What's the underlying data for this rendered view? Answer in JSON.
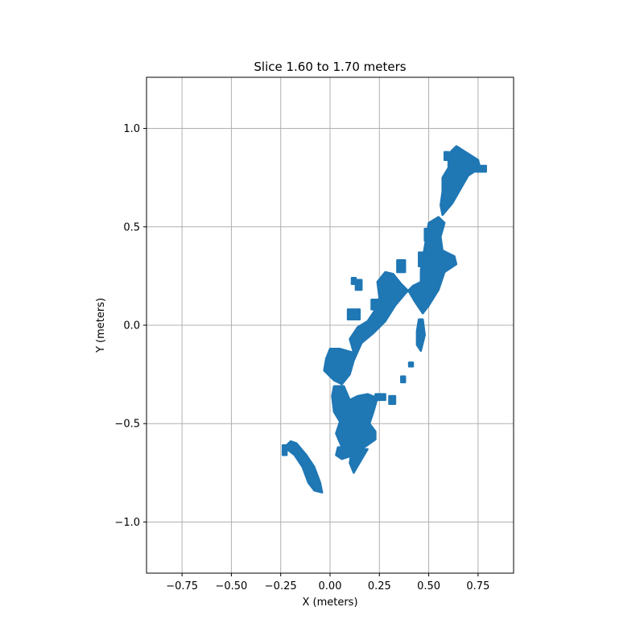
{
  "chart_data": {
    "type": "scatter",
    "title": "Slice 1.60 to 1.70 meters",
    "xlabel": "X (meters)",
    "ylabel": "Y (meters)",
    "xlim": [
      -0.93,
      0.93
    ],
    "ylim": [
      -1.26,
      1.26
    ],
    "grid": true,
    "x_ticks": [
      -0.75,
      -0.5,
      -0.25,
      0.0,
      0.25,
      0.5,
      0.75
    ],
    "x_tick_labels": [
      "−0.75",
      "−0.50",
      "−0.25",
      "0.00",
      "0.25",
      "0.50",
      "0.75"
    ],
    "y_ticks": [
      -1.0,
      -0.5,
      0.0,
      0.5,
      1.0
    ],
    "y_tick_labels": [
      "−1.0",
      "−0.5",
      "0.0",
      "0.5",
      "1.0"
    ],
    "series": [
      {
        "color": "#1f77b4",
        "regions": [
          {
            "points": [
              [
                0.64,
                0.91
              ],
              [
                0.75,
                0.84
              ],
              [
                0.76,
                0.8
              ],
              [
                0.7,
                0.76
              ],
              [
                0.66,
                0.69
              ],
              [
                0.62,
                0.62
              ],
              [
                0.57,
                0.56
              ],
              [
                0.56,
                0.61
              ],
              [
                0.57,
                0.68
              ],
              [
                0.57,
                0.75
              ],
              [
                0.6,
                0.8
              ],
              [
                0.6,
                0.87
              ]
            ]
          },
          {
            "points": [
              [
                0.58,
                0.88
              ],
              [
                0.6,
                0.88
              ],
              [
                0.6,
                0.84
              ],
              [
                0.58,
                0.84
              ]
            ]
          },
          {
            "points": [
              [
                0.74,
                0.81
              ],
              [
                0.79,
                0.81
              ],
              [
                0.79,
                0.78
              ],
              [
                0.74,
                0.78
              ]
            ]
          },
          {
            "points": [
              [
                0.55,
                0.55
              ],
              [
                0.58,
                0.52
              ],
              [
                0.56,
                0.45
              ],
              [
                0.57,
                0.38
              ],
              [
                0.63,
                0.35
              ],
              [
                0.64,
                0.31
              ],
              [
                0.58,
                0.27
              ],
              [
                0.55,
                0.18
              ],
              [
                0.5,
                0.1
              ],
              [
                0.46,
                0.18
              ],
              [
                0.46,
                0.28
              ],
              [
                0.48,
                0.4
              ],
              [
                0.5,
                0.52
              ]
            ]
          },
          {
            "points": [
              [
                0.48,
                0.49
              ],
              [
                0.51,
                0.49
              ],
              [
                0.51,
                0.43
              ],
              [
                0.48,
                0.43
              ]
            ]
          },
          {
            "points": [
              [
                0.45,
                0.37
              ],
              [
                0.49,
                0.37
              ],
              [
                0.49,
                0.3
              ],
              [
                0.45,
                0.3
              ]
            ]
          },
          {
            "points": [
              [
                0.46,
                0.22
              ],
              [
                0.52,
                0.17
              ],
              [
                0.5,
                0.1
              ],
              [
                0.47,
                0.06
              ],
              [
                0.43,
                0.12
              ],
              [
                0.4,
                0.17
              ],
              [
                0.36,
                0.21
              ],
              [
                0.32,
                0.26
              ],
              [
                0.28,
                0.27
              ],
              [
                0.24,
                0.22
              ],
              [
                0.25,
                0.14
              ],
              [
                0.23,
                0.08
              ],
              [
                0.19,
                0.02
              ],
              [
                0.14,
                -0.01
              ],
              [
                0.1,
                -0.07
              ],
              [
                0.12,
                -0.14
              ],
              [
                0.05,
                -0.12
              ],
              [
                0.0,
                -0.12
              ],
              [
                -0.02,
                -0.17
              ],
              [
                -0.03,
                -0.23
              ],
              [
                0.02,
                -0.28
              ],
              [
                0.06,
                -0.3
              ],
              [
                0.1,
                -0.25
              ],
              [
                0.12,
                -0.18
              ],
              [
                0.16,
                -0.09
              ],
              [
                0.22,
                -0.04
              ],
              [
                0.28,
                0.02
              ],
              [
                0.33,
                0.1
              ],
              [
                0.38,
                0.16
              ],
              [
                0.42,
                0.2
              ]
            ]
          },
          {
            "points": [
              [
                0.21,
                0.13
              ],
              [
                0.26,
                0.13
              ],
              [
                0.26,
                0.08
              ],
              [
                0.21,
                0.08
              ]
            ]
          },
          {
            "points": [
              [
                0.09,
                0.08
              ],
              [
                0.15,
                0.08
              ],
              [
                0.15,
                0.03
              ],
              [
                0.09,
                0.03
              ]
            ]
          },
          {
            "points": [
              [
                0.34,
                0.33
              ],
              [
                0.38,
                0.33
              ],
              [
                0.38,
                0.27
              ],
              [
                0.34,
                0.27
              ]
            ]
          },
          {
            "points": [
              [
                0.45,
                0.03
              ],
              [
                0.47,
                0.03
              ],
              [
                0.48,
                -0.05
              ],
              [
                0.46,
                -0.13
              ],
              [
                0.44,
                -0.1
              ],
              [
                0.44,
                -0.03
              ]
            ]
          },
          {
            "points": [
              [
                0.4,
                -0.19
              ],
              [
                0.42,
                -0.19
              ],
              [
                0.42,
                -0.21
              ],
              [
                0.4,
                -0.21
              ]
            ]
          },
          {
            "points": [
              [
                0.36,
                -0.26
              ],
              [
                0.38,
                -0.26
              ],
              [
                0.38,
                -0.29
              ],
              [
                0.36,
                -0.29
              ]
            ]
          },
          {
            "points": [
              [
                0.3,
                -0.36
              ],
              [
                0.33,
                -0.36
              ],
              [
                0.33,
                -0.4
              ],
              [
                0.3,
                -0.4
              ]
            ]
          },
          {
            "points": [
              [
                0.02,
                -0.31
              ],
              [
                0.07,
                -0.31
              ],
              [
                0.1,
                -0.38
              ],
              [
                0.14,
                -0.36
              ],
              [
                0.19,
                -0.35
              ],
              [
                0.24,
                -0.37
              ],
              [
                0.22,
                -0.44
              ],
              [
                0.2,
                -0.5
              ],
              [
                0.23,
                -0.54
              ],
              [
                0.23,
                -0.58
              ],
              [
                0.16,
                -0.63
              ],
              [
                0.12,
                -0.65
              ],
              [
                0.06,
                -0.62
              ],
              [
                0.03,
                -0.55
              ],
              [
                0.05,
                -0.49
              ],
              [
                0.02,
                -0.44
              ],
              [
                0.01,
                -0.36
              ]
            ]
          },
          {
            "points": [
              [
                0.04,
                -0.62
              ],
              [
                0.11,
                -0.62
              ],
              [
                0.12,
                -0.66
              ],
              [
                0.06,
                -0.68
              ],
              [
                0.03,
                -0.66
              ]
            ]
          },
          {
            "points": [
              [
                0.11,
                -0.63
              ],
              [
                0.19,
                -0.63
              ],
              [
                0.12,
                -0.75
              ],
              [
                0.1,
                -0.7
              ]
            ]
          },
          {
            "points": [
              [
                -0.2,
                -0.59
              ],
              [
                -0.17,
                -0.6
              ],
              [
                -0.12,
                -0.66
              ],
              [
                -0.08,
                -0.72
              ],
              [
                -0.05,
                -0.8
              ],
              [
                -0.04,
                -0.85
              ],
              [
                -0.08,
                -0.84
              ],
              [
                -0.11,
                -0.8
              ],
              [
                -0.14,
                -0.72
              ],
              [
                -0.18,
                -0.66
              ],
              [
                -0.23,
                -0.62
              ]
            ]
          },
          {
            "points": [
              [
                -0.24,
                -0.61
              ],
              [
                -0.22,
                -0.61
              ],
              [
                -0.22,
                -0.66
              ],
              [
                -0.24,
                -0.66
              ]
            ]
          },
          {
            "points": [
              [
                0.11,
                -0.62
              ],
              [
                0.14,
                -0.62
              ],
              [
                0.14,
                -0.67
              ],
              [
                0.11,
                -0.67
              ]
            ]
          },
          {
            "points": [
              [
                0.23,
                -0.35
              ],
              [
                0.28,
                -0.35
              ],
              [
                0.28,
                -0.38
              ],
              [
                0.23,
                -0.38
              ]
            ]
          },
          {
            "points": [
              [
                0.11,
                0.24
              ],
              [
                0.13,
                0.24
              ],
              [
                0.13,
                0.21
              ],
              [
                0.11,
                0.21
              ]
            ]
          },
          {
            "points": [
              [
                0.13,
                0.23
              ],
              [
                0.16,
                0.23
              ],
              [
                0.16,
                0.18
              ],
              [
                0.13,
                0.18
              ]
            ]
          }
        ]
      }
    ]
  }
}
